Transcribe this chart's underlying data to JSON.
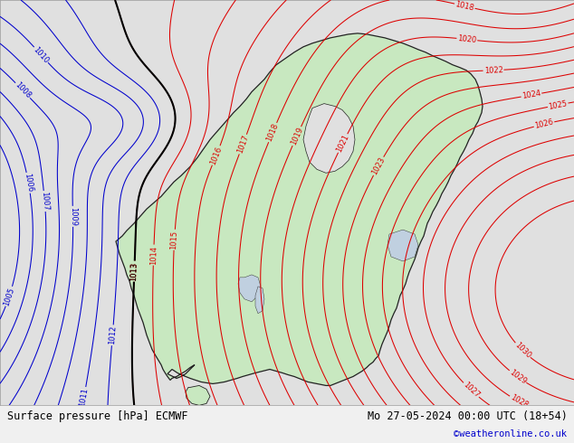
{
  "title_left": "Surface pressure [hPa] ECMWF",
  "title_right": "Mo 27-05-2024 00:00 UTC (18+54)",
  "copyright": "©weatheronline.co.uk",
  "fig_bg": "#f0f0f0",
  "sea_color": "#e0e0e0",
  "land_color": "#c8e8c0",
  "border_color": "#222222",
  "gray_coast_color": "#aaaaaa",
  "isobar_red": "#dd0000",
  "isobar_blue": "#0000cc",
  "isobar_black": "#000000",
  "label_fontsize": 6,
  "footer_fontsize": 8.5,
  "copyright_fontsize": 7.5,
  "figsize": [
    6.34,
    4.9
  ],
  "dpi": 100
}
